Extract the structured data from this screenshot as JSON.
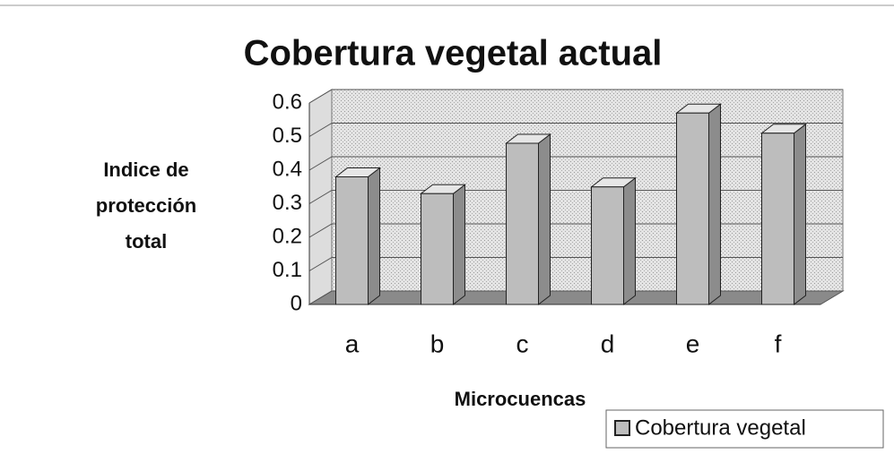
{
  "chart_data": {
    "type": "bar",
    "title": "Cobertura vegetal actual",
    "y_label": "Indice de protección total",
    "x_label": "Microcuencas",
    "categories": [
      "a",
      "b",
      "c",
      "d",
      "e",
      "f"
    ],
    "series": [
      {
        "name": "Cobertura vegetal",
        "color": "#bdbdbd",
        "values": [
          0.38,
          0.33,
          0.48,
          0.35,
          0.57,
          0.51
        ]
      }
    ],
    "ylim": [
      0,
      0.6
    ],
    "yticks": [
      0,
      0.1,
      0.2,
      0.3,
      0.4,
      0.5,
      0.6
    ],
    "grid": true,
    "legend": "bottom-right"
  }
}
